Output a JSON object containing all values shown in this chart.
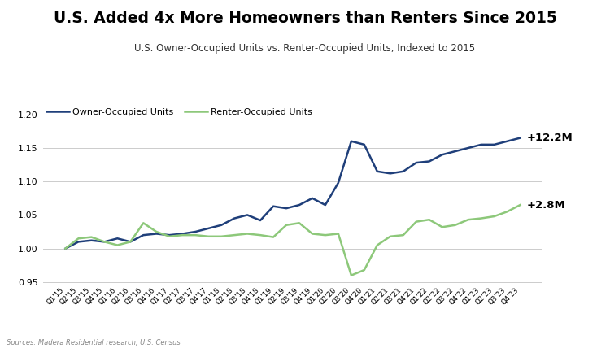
{
  "title": "U.S. Added 4x More Homeowners than Renters Since 2015",
  "subtitle": "U.S. Owner-Occupied Units vs. Renter-Occupied Units, Indexed to 2015",
  "source": "Sources: Madera Residential research, U.S. Census",
  "legend_owner": "Owner-Occupied Units",
  "legend_renter": "Renter-Occupied Units",
  "owner_label": "+12.2M",
  "renter_label": "+2.8M",
  "owner_color": "#1f3f7a",
  "renter_color": "#8dc87a",
  "background_color": "#ffffff",
  "ylim": [
    0.945,
    1.215
  ],
  "yticks": [
    0.95,
    1.0,
    1.05,
    1.1,
    1.15,
    1.2
  ],
  "x_labels": [
    "Q1'15",
    "Q2'15",
    "Q3'15",
    "Q4'15",
    "Q1'16",
    "Q2'16",
    "Q3'16",
    "Q4'16",
    "Q1'17",
    "Q2'17",
    "Q3'17",
    "Q4'17",
    "Q1'18",
    "Q2'18",
    "Q3'18",
    "Q4'18",
    "Q1'19",
    "Q2'19",
    "Q3'19",
    "Q4'19",
    "Q1'20",
    "Q2'20",
    "Q3'20",
    "Q4'20",
    "Q1'21",
    "Q2'21",
    "Q3'21",
    "Q4'21",
    "Q1'22",
    "Q2'22",
    "Q3'22",
    "Q4'22",
    "Q1'23",
    "Q2'23",
    "Q3'23",
    "Q4'23"
  ],
  "owner_data": [
    1.0,
    1.01,
    1.012,
    1.01,
    1.015,
    1.01,
    1.02,
    1.022,
    1.02,
    1.022,
    1.025,
    1.03,
    1.035,
    1.045,
    1.05,
    1.042,
    1.063,
    1.06,
    1.065,
    1.075,
    1.065,
    1.098,
    1.16,
    1.155,
    1.115,
    1.112,
    1.115,
    1.128,
    1.13,
    1.14,
    1.145,
    1.15,
    1.155,
    1.155,
    1.16,
    1.165
  ],
  "renter_data": [
    1.0,
    1.015,
    1.017,
    1.01,
    1.005,
    1.01,
    1.038,
    1.025,
    1.018,
    1.02,
    1.02,
    1.018,
    1.018,
    1.02,
    1.022,
    1.02,
    1.017,
    1.035,
    1.038,
    1.022,
    1.02,
    1.022,
    0.96,
    0.968,
    1.005,
    1.018,
    1.02,
    1.04,
    1.043,
    1.032,
    1.035,
    1.043,
    1.045,
    1.048,
    1.055,
    1.065
  ]
}
